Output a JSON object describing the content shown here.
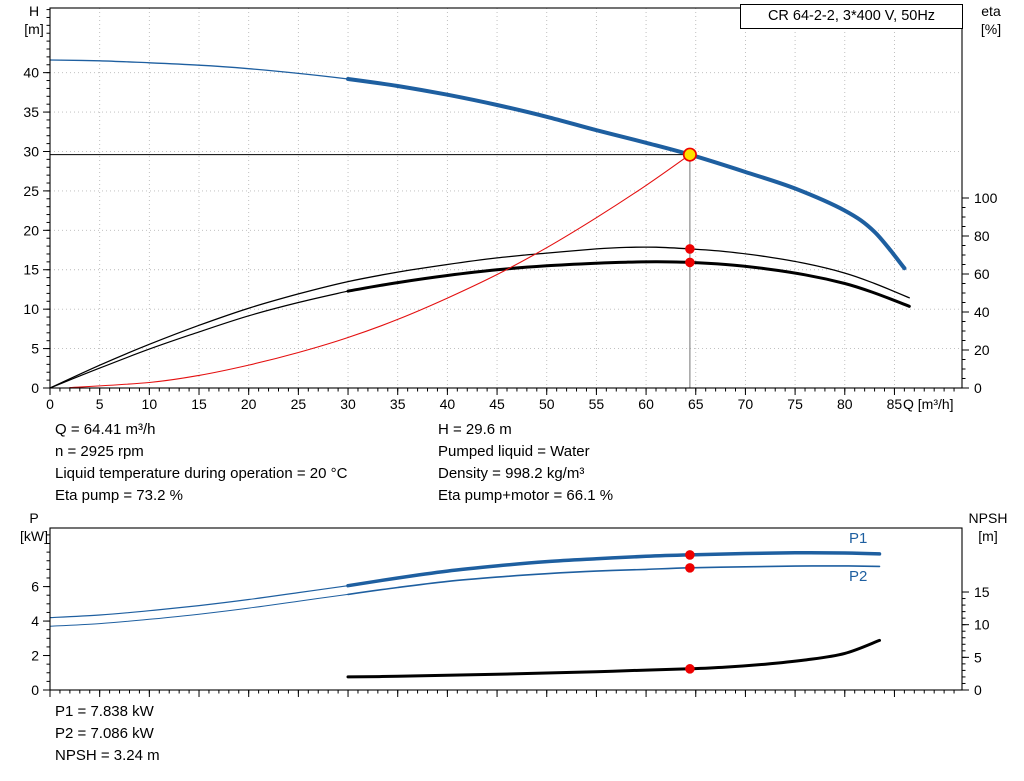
{
  "header": {
    "title": "CR 64-2-2, 3*400 V, 50Hz"
  },
  "operating_data": {
    "col_left": [
      "Q = 64.41 m³/h",
      "n = 2925 rpm",
      "Liquid temperature during operation = 20 °C",
      "Eta pump = 73.2 %"
    ],
    "col_right": [
      "H = 29.6 m",
      "Pumped liquid = Water",
      "Density = 998.2 kg/m³",
      "Eta pump+motor = 66.1 %"
    ]
  },
  "power_data": [
    "P1 = 7.838 kW",
    "P2 = 7.086 kW",
    "NPSH = 3.24 m"
  ],
  "colors": {
    "curve_blue": "#1e5fa0",
    "curve_black": "#000000",
    "curve_red": "#e41010",
    "marker_red": "#ee0000",
    "marker_yellow": "#ffe000",
    "grid_gray": "#b9b9b9",
    "ref_gray": "#8a8a8a"
  },
  "chart_data": [
    {
      "id": "chart-top",
      "type": "line",
      "title": "CR 64-2-2, 3*400 V, 50Hz",
      "grid": true,
      "x_axis": {
        "label": "Q [m³/h]",
        "min": 0,
        "max": 91.8,
        "minor_step": 1,
        "majors": [
          0,
          5,
          10,
          15,
          20,
          25,
          30,
          35,
          40,
          45,
          50,
          55,
          60,
          65,
          70,
          75,
          80,
          85
        ]
      },
      "y_left": {
        "label": "H",
        "unit": "[m]",
        "min": 0,
        "max": 48.2,
        "minor_step": 1,
        "majors": [
          0,
          5,
          10,
          15,
          20,
          25,
          30,
          35,
          40
        ]
      },
      "y_right": {
        "label": "eta",
        "unit": "[%]",
        "min": 0,
        "max": 200,
        "minor_step": 5,
        "minor_to": 100,
        "majors": [
          0,
          20,
          40,
          60,
          80,
          100
        ]
      },
      "series": [
        {
          "name": "QH low-flow",
          "axis": "left",
          "color": "#1e5fa0",
          "width": 1.3,
          "points": [
            [
              0,
              41.6
            ],
            [
              5,
              41.5
            ],
            [
              10,
              41.25
            ],
            [
              15,
              40.95
            ],
            [
              20,
              40.5
            ],
            [
              25,
              39.9
            ],
            [
              30,
              39.2
            ]
          ]
        },
        {
          "name": "QH",
          "axis": "left",
          "color": "#1e5fa0",
          "width": 4,
          "points": [
            [
              30,
              39.2
            ],
            [
              35,
              38.3
            ],
            [
              40,
              37.2
            ],
            [
              45,
              35.9
            ],
            [
              50,
              34.4
            ],
            [
              55,
              32.7
            ],
            [
              60,
              31.1
            ],
            [
              64.41,
              29.6
            ],
            [
              70,
              27.4
            ],
            [
              75,
              25.3
            ],
            [
              80,
              22.5
            ],
            [
              83,
              19.8
            ],
            [
              86,
              15.2
            ]
          ]
        },
        {
          "name": "Eta pump",
          "axis": "right",
          "color": "#000000",
          "width": 1.3,
          "points": [
            [
              0,
              0
            ],
            [
              5,
              12
            ],
            [
              10,
              23
            ],
            [
              15,
              33
            ],
            [
              20,
              42
            ],
            [
              25,
              49.5
            ],
            [
              30,
              56
            ],
            [
              35,
              61
            ],
            [
              40,
              65
            ],
            [
              45,
              68.5
            ],
            [
              50,
              71
            ],
            [
              55,
              73.2
            ],
            [
              58,
              74
            ],
            [
              61,
              74.1
            ],
            [
              64.41,
              73.2
            ],
            [
              68,
              71.8
            ],
            [
              72,
              69.2
            ],
            [
              76,
              65.6
            ],
            [
              80,
              60.5
            ],
            [
              83,
              55
            ],
            [
              86.5,
              47.5
            ]
          ]
        },
        {
          "name": "Eta pump+motor low-flow",
          "axis": "right",
          "color": "#000000",
          "width": 1.2,
          "points": [
            [
              0,
              0
            ],
            [
              5,
              10.5
            ],
            [
              10,
              20.5
            ],
            [
              15,
              29.5
            ],
            [
              20,
              38
            ],
            [
              25,
              45
            ],
            [
              30,
              51
            ]
          ]
        },
        {
          "name": "Eta pump+motor",
          "axis": "right",
          "color": "#000000",
          "width": 3,
          "points": [
            [
              30,
              51
            ],
            [
              35,
              55.5
            ],
            [
              40,
              59.2
            ],
            [
              45,
              62.2
            ],
            [
              50,
              64.3
            ],
            [
              55,
              65.7
            ],
            [
              58,
              66.2
            ],
            [
              61,
              66.4
            ],
            [
              64.41,
              66.1
            ],
            [
              68,
              65
            ],
            [
              72,
              62.8
            ],
            [
              76,
              59.6
            ],
            [
              80,
              55
            ],
            [
              83,
              50
            ],
            [
              86.5,
              43
            ]
          ]
        },
        {
          "name": "System curve",
          "axis": "left",
          "color": "#e41010",
          "width": 1.1,
          "points": [
            [
              2,
              0.05
            ],
            [
              10,
              0.7
            ],
            [
              15,
              1.6
            ],
            [
              20,
              2.9
            ],
            [
              25,
              4.5
            ],
            [
              30,
              6.4
            ],
            [
              35,
              8.7
            ],
            [
              40,
              11.4
            ],
            [
              45,
              14.4
            ],
            [
              50,
              17.8
            ],
            [
              55,
              21.6
            ],
            [
              60,
              25.7
            ],
            [
              64.41,
              29.6
            ]
          ]
        }
      ],
      "ref_lines": [
        {
          "orient": "h",
          "axis": "left",
          "value": 29.6,
          "x1": 0,
          "x2": 64.41,
          "color": "#000000",
          "width": 1
        },
        {
          "orient": "v",
          "axis": "left",
          "x": 64.41,
          "v1": 0,
          "v2": 29.6,
          "color": "#8a8a8a",
          "width": 1.2
        }
      ],
      "markers": [
        {
          "x": 64.41,
          "value": 29.6,
          "axis": "left",
          "style": "duty"
        },
        {
          "x": 64.41,
          "value": 73.2,
          "axis": "right",
          "style": "dot"
        },
        {
          "x": 64.41,
          "value": 66.1,
          "axis": "right",
          "style": "dot"
        }
      ]
    },
    {
      "id": "chart-bottom",
      "type": "line",
      "title": "",
      "grid": false,
      "x_axis": {
        "label": "",
        "min": 0,
        "max": 91.8,
        "minor_step": 1,
        "show_labels": false,
        "majors": [
          0,
          5,
          10,
          15,
          20,
          25,
          30,
          35,
          40,
          45,
          50,
          55,
          60,
          65,
          70,
          75,
          80,
          85
        ]
      },
      "y_left": {
        "label": "P",
        "unit": "[kW]",
        "min": 0,
        "max": 9.4,
        "minor_step": 0.5,
        "minor_to": 9,
        "majors": [
          0,
          2,
          4,
          6
        ]
      },
      "y_right": {
        "label": "NPSH",
        "unit": "[m]",
        "min": 0,
        "max": 24.8,
        "minor_step": 1,
        "minor_to": 15,
        "majors": [
          0,
          5,
          10,
          15
        ]
      },
      "series": [
        {
          "name": "P1 low-flow",
          "axis": "left",
          "color": "#1e5fa0",
          "width": 1.2,
          "points": [
            [
              0,
              4.2
            ],
            [
              5,
              4.35
            ],
            [
              10,
              4.6
            ],
            [
              15,
              4.9
            ],
            [
              20,
              5.25
            ],
            [
              25,
              5.65
            ],
            [
              30,
              6.05
            ]
          ]
        },
        {
          "name": "P1",
          "axis": "left",
          "color": "#1e5fa0",
          "width": 3.5,
          "points": [
            [
              30,
              6.05
            ],
            [
              35,
              6.5
            ],
            [
              40,
              6.9
            ],
            [
              45,
              7.2
            ],
            [
              50,
              7.45
            ],
            [
              55,
              7.62
            ],
            [
              60,
              7.76
            ],
            [
              64.41,
              7.84
            ],
            [
              70,
              7.92
            ],
            [
              75,
              7.96
            ],
            [
              80,
              7.95
            ],
            [
              83.5,
              7.9
            ]
          ]
        },
        {
          "name": "P2 low-flow",
          "axis": "left",
          "color": "#1e5fa0",
          "width": 1,
          "points": [
            [
              0,
              3.7
            ],
            [
              5,
              3.85
            ],
            [
              10,
              4.1
            ],
            [
              15,
              4.4
            ],
            [
              20,
              4.75
            ],
            [
              25,
              5.15
            ],
            [
              30,
              5.55
            ]
          ]
        },
        {
          "name": "P2",
          "axis": "left",
          "color": "#1e5fa0",
          "width": 1.6,
          "points": [
            [
              30,
              5.55
            ],
            [
              35,
              5.95
            ],
            [
              40,
              6.3
            ],
            [
              45,
              6.55
            ],
            [
              50,
              6.75
            ],
            [
              55,
              6.9
            ],
            [
              60,
              7.0
            ],
            [
              64.41,
              7.09
            ],
            [
              70,
              7.15
            ],
            [
              75,
              7.19
            ],
            [
              80,
              7.2
            ],
            [
              83.5,
              7.17
            ]
          ]
        },
        {
          "name": "NPSH",
          "axis": "right",
          "color": "#000000",
          "width": 3,
          "points": [
            [
              30,
              2.0
            ],
            [
              35,
              2.1
            ],
            [
              40,
              2.25
            ],
            [
              45,
              2.4
            ],
            [
              50,
              2.6
            ],
            [
              55,
              2.8
            ],
            [
              60,
              3.05
            ],
            [
              64.41,
              3.24
            ],
            [
              68,
              3.5
            ],
            [
              72,
              3.95
            ],
            [
              76,
              4.6
            ],
            [
              80,
              5.6
            ],
            [
              83.5,
              7.6
            ]
          ]
        }
      ],
      "ref_lines": [],
      "markers": [
        {
          "x": 64.41,
          "value": 7.838,
          "axis": "left",
          "style": "dot"
        },
        {
          "x": 64.41,
          "value": 7.086,
          "axis": "left",
          "style": "dot"
        },
        {
          "x": 64.41,
          "value": 3.24,
          "axis": "right",
          "style": "dot"
        }
      ]
    }
  ]
}
